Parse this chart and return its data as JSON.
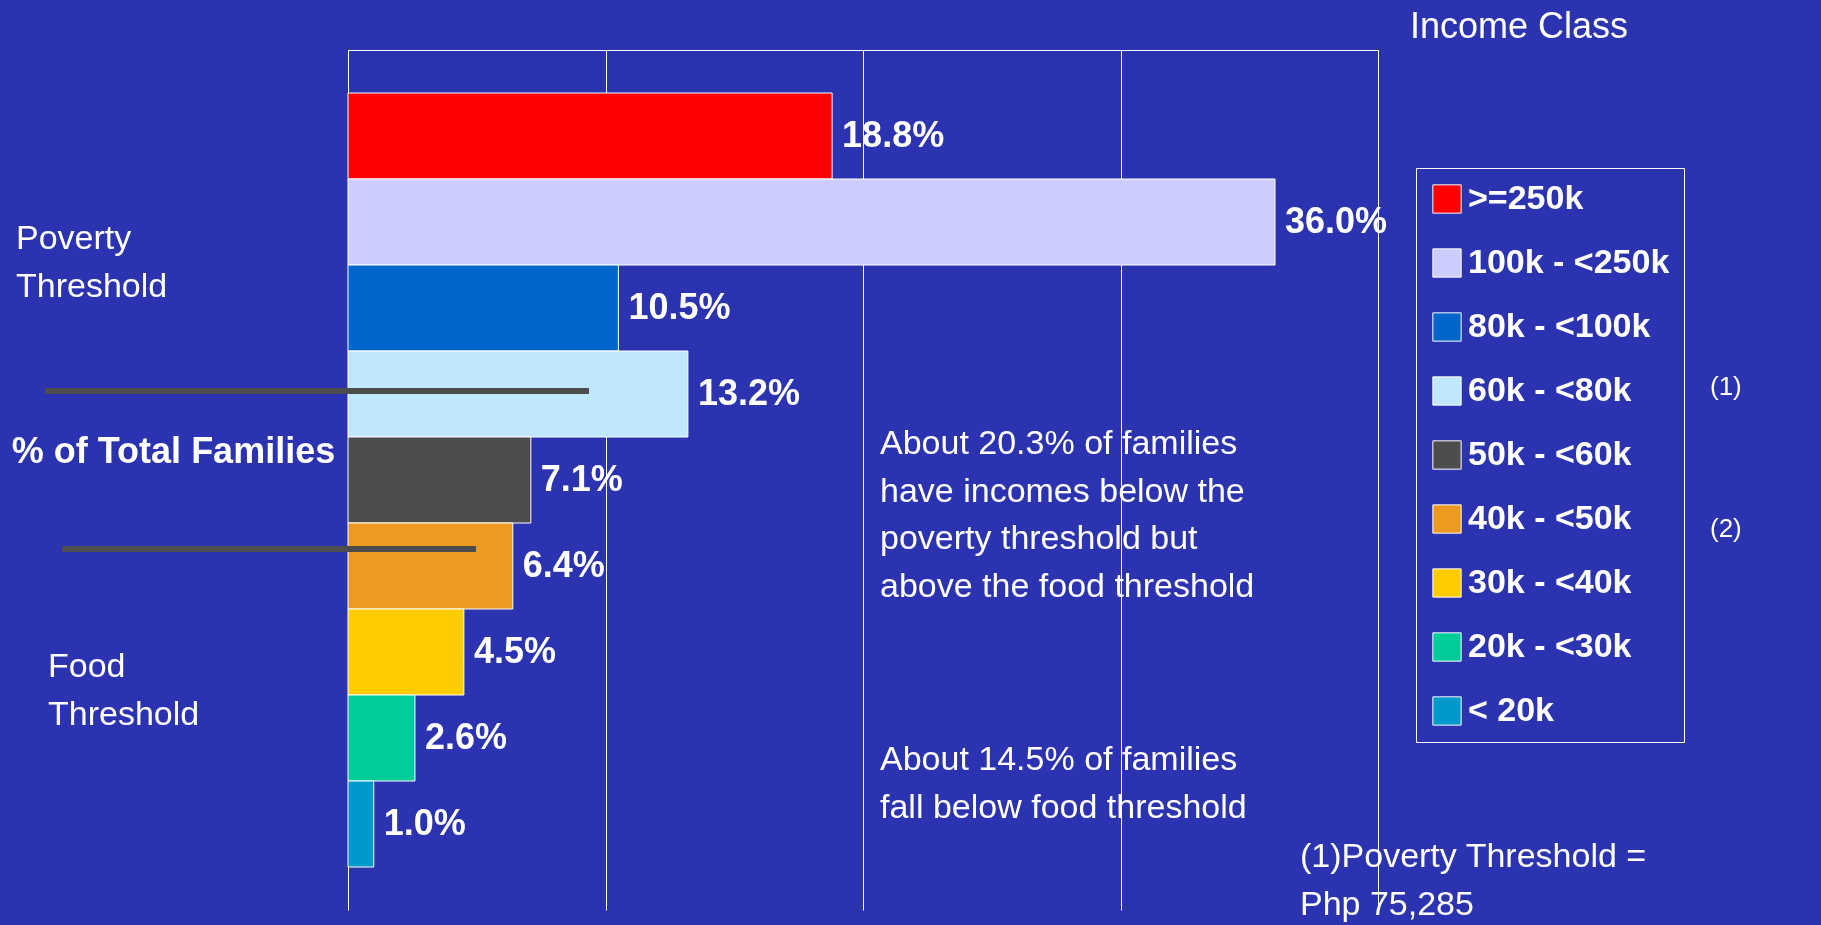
{
  "chart_data": {
    "type": "bar",
    "orientation": "horizontal",
    "stacked": true,
    "ylabel": "% of Total Families",
    "legend_title": "Income Class",
    "legend": "right",
    "grid": "x",
    "tick_labels": false,
    "categories": [
      null,
      null,
      null,
      null,
      null,
      null,
      null,
      null,
      null
    ],
    "series": [
      {
        "name": ">=250k",
        "color": "#ff0000",
        "values": [
          18.8,
          null,
          null,
          null,
          null,
          null,
          null,
          null,
          null
        ],
        "value_labels": [
          "18.8%",
          null,
          null,
          null,
          null,
          null,
          null,
          null,
          null
        ]
      },
      {
        "name": "100k - <250k",
        "color": "#ccccff",
        "values": [
          null,
          36.0,
          null,
          null,
          null,
          null,
          null,
          null,
          null
        ],
        "value_labels": [
          null,
          "36.0%",
          null,
          null,
          null,
          null,
          null,
          null,
          null
        ]
      },
      {
        "name": "80k - <100k",
        "color": "#0066cc",
        "values": [
          null,
          null,
          10.5,
          null,
          null,
          null,
          null,
          null,
          null
        ],
        "value_labels": [
          null,
          null,
          "10.5%",
          null,
          null,
          null,
          null,
          null,
          null
        ]
      },
      {
        "name": "60k - <80k",
        "color": "#bfe8ff",
        "values": [
          null,
          null,
          null,
          13.2,
          null,
          null,
          null,
          null,
          null
        ],
        "value_labels": [
          null,
          null,
          null,
          "13.2%",
          null,
          null,
          null,
          null,
          null
        ]
      },
      {
        "name": "50k - <60k",
        "color": "#4d4d4d",
        "values": [
          null,
          null,
          null,
          null,
          7.1,
          null,
          null,
          null,
          null
        ],
        "value_labels": [
          null,
          null,
          null,
          null,
          "7.1%",
          null,
          null,
          null,
          null
        ]
      },
      {
        "name": "40k - <50k",
        "color": "#ee9922",
        "values": [
          null,
          null,
          null,
          null,
          null,
          6.4,
          null,
          null,
          null
        ],
        "value_labels": [
          null,
          null,
          null,
          null,
          null,
          "6.4%",
          null,
          null,
          null
        ]
      },
      {
        "name": "30k - <40k",
        "color": "#ffcc00",
        "values": [
          null,
          null,
          null,
          null,
          null,
          null,
          4.5,
          null,
          null
        ],
        "value_labels": [
          null,
          null,
          null,
          null,
          null,
          null,
          "4.5%",
          null,
          null
        ]
      },
      {
        "name": "20k - <30k",
        "color": "#00cc99",
        "values": [
          null,
          null,
          null,
          null,
          null,
          null,
          null,
          2.6,
          null
        ],
        "value_labels": [
          null,
          null,
          null,
          null,
          null,
          null,
          null,
          "2.6%",
          null
        ]
      },
      {
        "name": "< 20k",
        "color": "#0099cc",
        "values": [
          null,
          null,
          null,
          null,
          null,
          null,
          null,
          null,
          1.0
        ],
        "value_labels": [
          null,
          null,
          null,
          null,
          null,
          null,
          null,
          null,
          "1.0%"
        ]
      }
    ],
    "xlim": [
      0,
      40
    ],
    "xticks": [
      0,
      10,
      20,
      30,
      40
    ],
    "annotations": [
      "Poverty Threshold",
      "Food Threshold",
      "About 20.3% of families have incomes below the poverty threshold but above the food threshold",
      "About 14.5% of families fall below food threshold",
      "(1)",
      "(2)",
      "(1)Poverty Threshold = Php 75,285"
    ]
  }
}
